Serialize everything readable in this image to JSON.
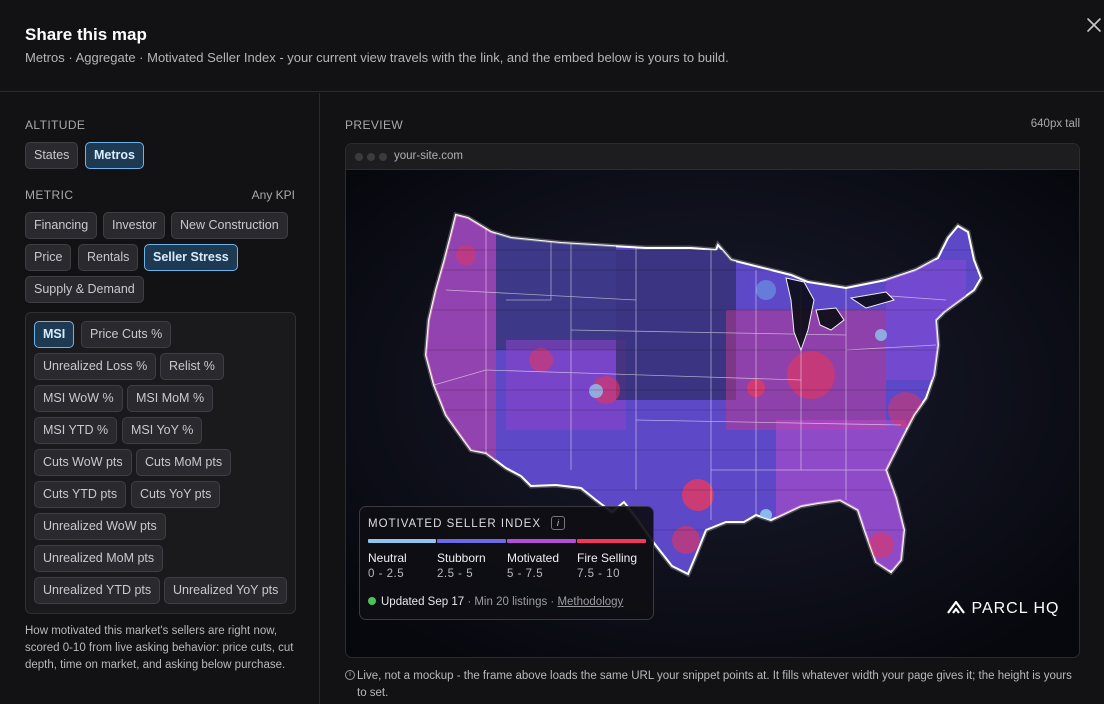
{
  "header": {
    "title": "Share this map",
    "subtitle": "Metros · Aggregate · Motivated Seller Index - your current view travels with the link, and the embed below is yours to build."
  },
  "left": {
    "altitude": {
      "label": "ALTITUDE",
      "options": [
        "States",
        "Metros"
      ],
      "selected": "Metros"
    },
    "metric": {
      "label": "METRIC",
      "hint": "Any KPI",
      "categories": [
        "Financing",
        "Investor",
        "New Construction",
        "Price",
        "Rentals",
        "Seller Stress",
        "Supply & Demand"
      ],
      "selected_category": "Seller Stress",
      "kpis": [
        "MSI",
        "Price Cuts %",
        "Unrealized Loss %",
        "Relist %",
        "MSI WoW %",
        "MSI MoM %",
        "MSI YTD %",
        "MSI YoY %",
        "Cuts WoW pts",
        "Cuts MoM pts",
        "Cuts YTD pts",
        "Cuts YoY pts",
        "Unrealized WoW pts",
        "Unrealized MoM pts",
        "Unrealized YTD pts",
        "Unrealized YoY pts"
      ],
      "selected_kpi": "MSI"
    },
    "description": "How motivated this market's sellers are right now, scored 0-10 from live asking behavior: price cuts, cut depth, time on market, and asking below purchase."
  },
  "preview": {
    "label": "PREVIEW",
    "height_note": "640px tall",
    "url": "your-site.com",
    "legend": {
      "title": "MOTIVATED SELLER INDEX",
      "info_icon": "i",
      "categories": [
        {
          "name": "Neutral",
          "range": "0 - 2.5",
          "color": "#8fc4ef"
        },
        {
          "name": "Stubborn",
          "range": "2.5 - 5",
          "color": "#6d6ae8"
        },
        {
          "name": "Motivated",
          "range": "5 - 7.5",
          "color": "#b44ed8"
        },
        {
          "name": "Fire Selling",
          "range": "7.5 - 10",
          "color": "#f0385a"
        }
      ],
      "updated": "Updated Sep 17",
      "min_listings": "· Min 20 listings ·",
      "methodology": "Methodology"
    },
    "brand": "PARCL HQ",
    "note": "Live, not a mockup - the frame above loads the same URL your snippet points at. It fills whatever width your page gives it; the height is yours to set."
  },
  "icons": {
    "close": "close-icon",
    "info": "info-icon",
    "brand": "parcl-logo-icon",
    "status": "status-dot-icon"
  }
}
